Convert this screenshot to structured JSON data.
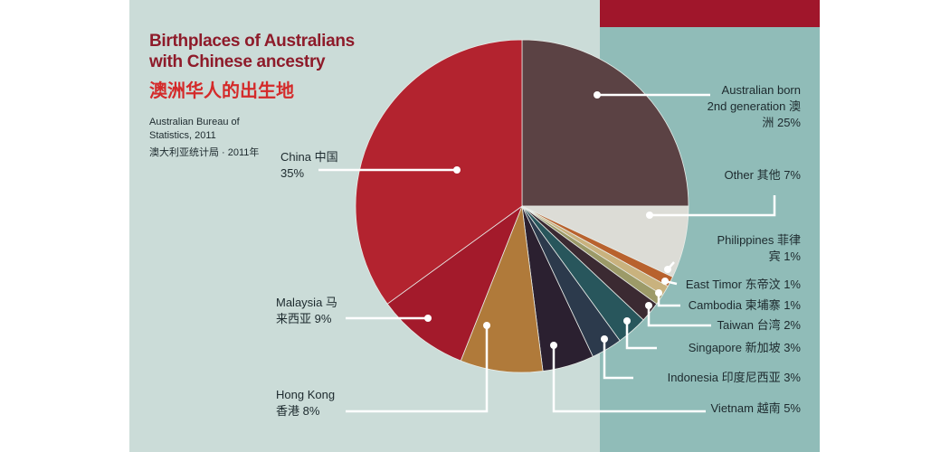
{
  "chart_data": {
    "type": "pie",
    "title": "Birthplaces of Australians with Chinese ancestry",
    "subtitle": "澳洲华人的出生地",
    "source": "Australian Bureau of Statistics, 2011",
    "source_cn": "澳大利亚统计局 · 2011年",
    "categories": [
      "Australian born 2nd generation 澳洲",
      "Other 其他",
      "Philippines 菲律宾",
      "East Timor 东帝汶",
      "Cambodia 柬埔寨",
      "Taiwan 台湾",
      "Singapore 新加坡",
      "Indonesia 印度尼西亚",
      "Vietnam 越南",
      "Hong Kong 香港",
      "Malaysia 马来西亚",
      "China 中国"
    ],
    "values": [
      25,
      7,
      1,
      1,
      1,
      2,
      3,
      3,
      5,
      8,
      9,
      35
    ],
    "value_labels": [
      "25%",
      "7%",
      "1%",
      "1%",
      "1%",
      "2%",
      "3%",
      "3%",
      "5%",
      "8%",
      "9%",
      "35%"
    ],
    "colors": [
      "#5b4244",
      "#dcdcd6",
      "#b8622e",
      "#c9b27e",
      "#9c9a68",
      "#3b2a32",
      "#28565c",
      "#2c3a4c",
      "#2b2030",
      "#b07a3a",
      "#a31a2b",
      "#b3232f"
    ]
  }
}
